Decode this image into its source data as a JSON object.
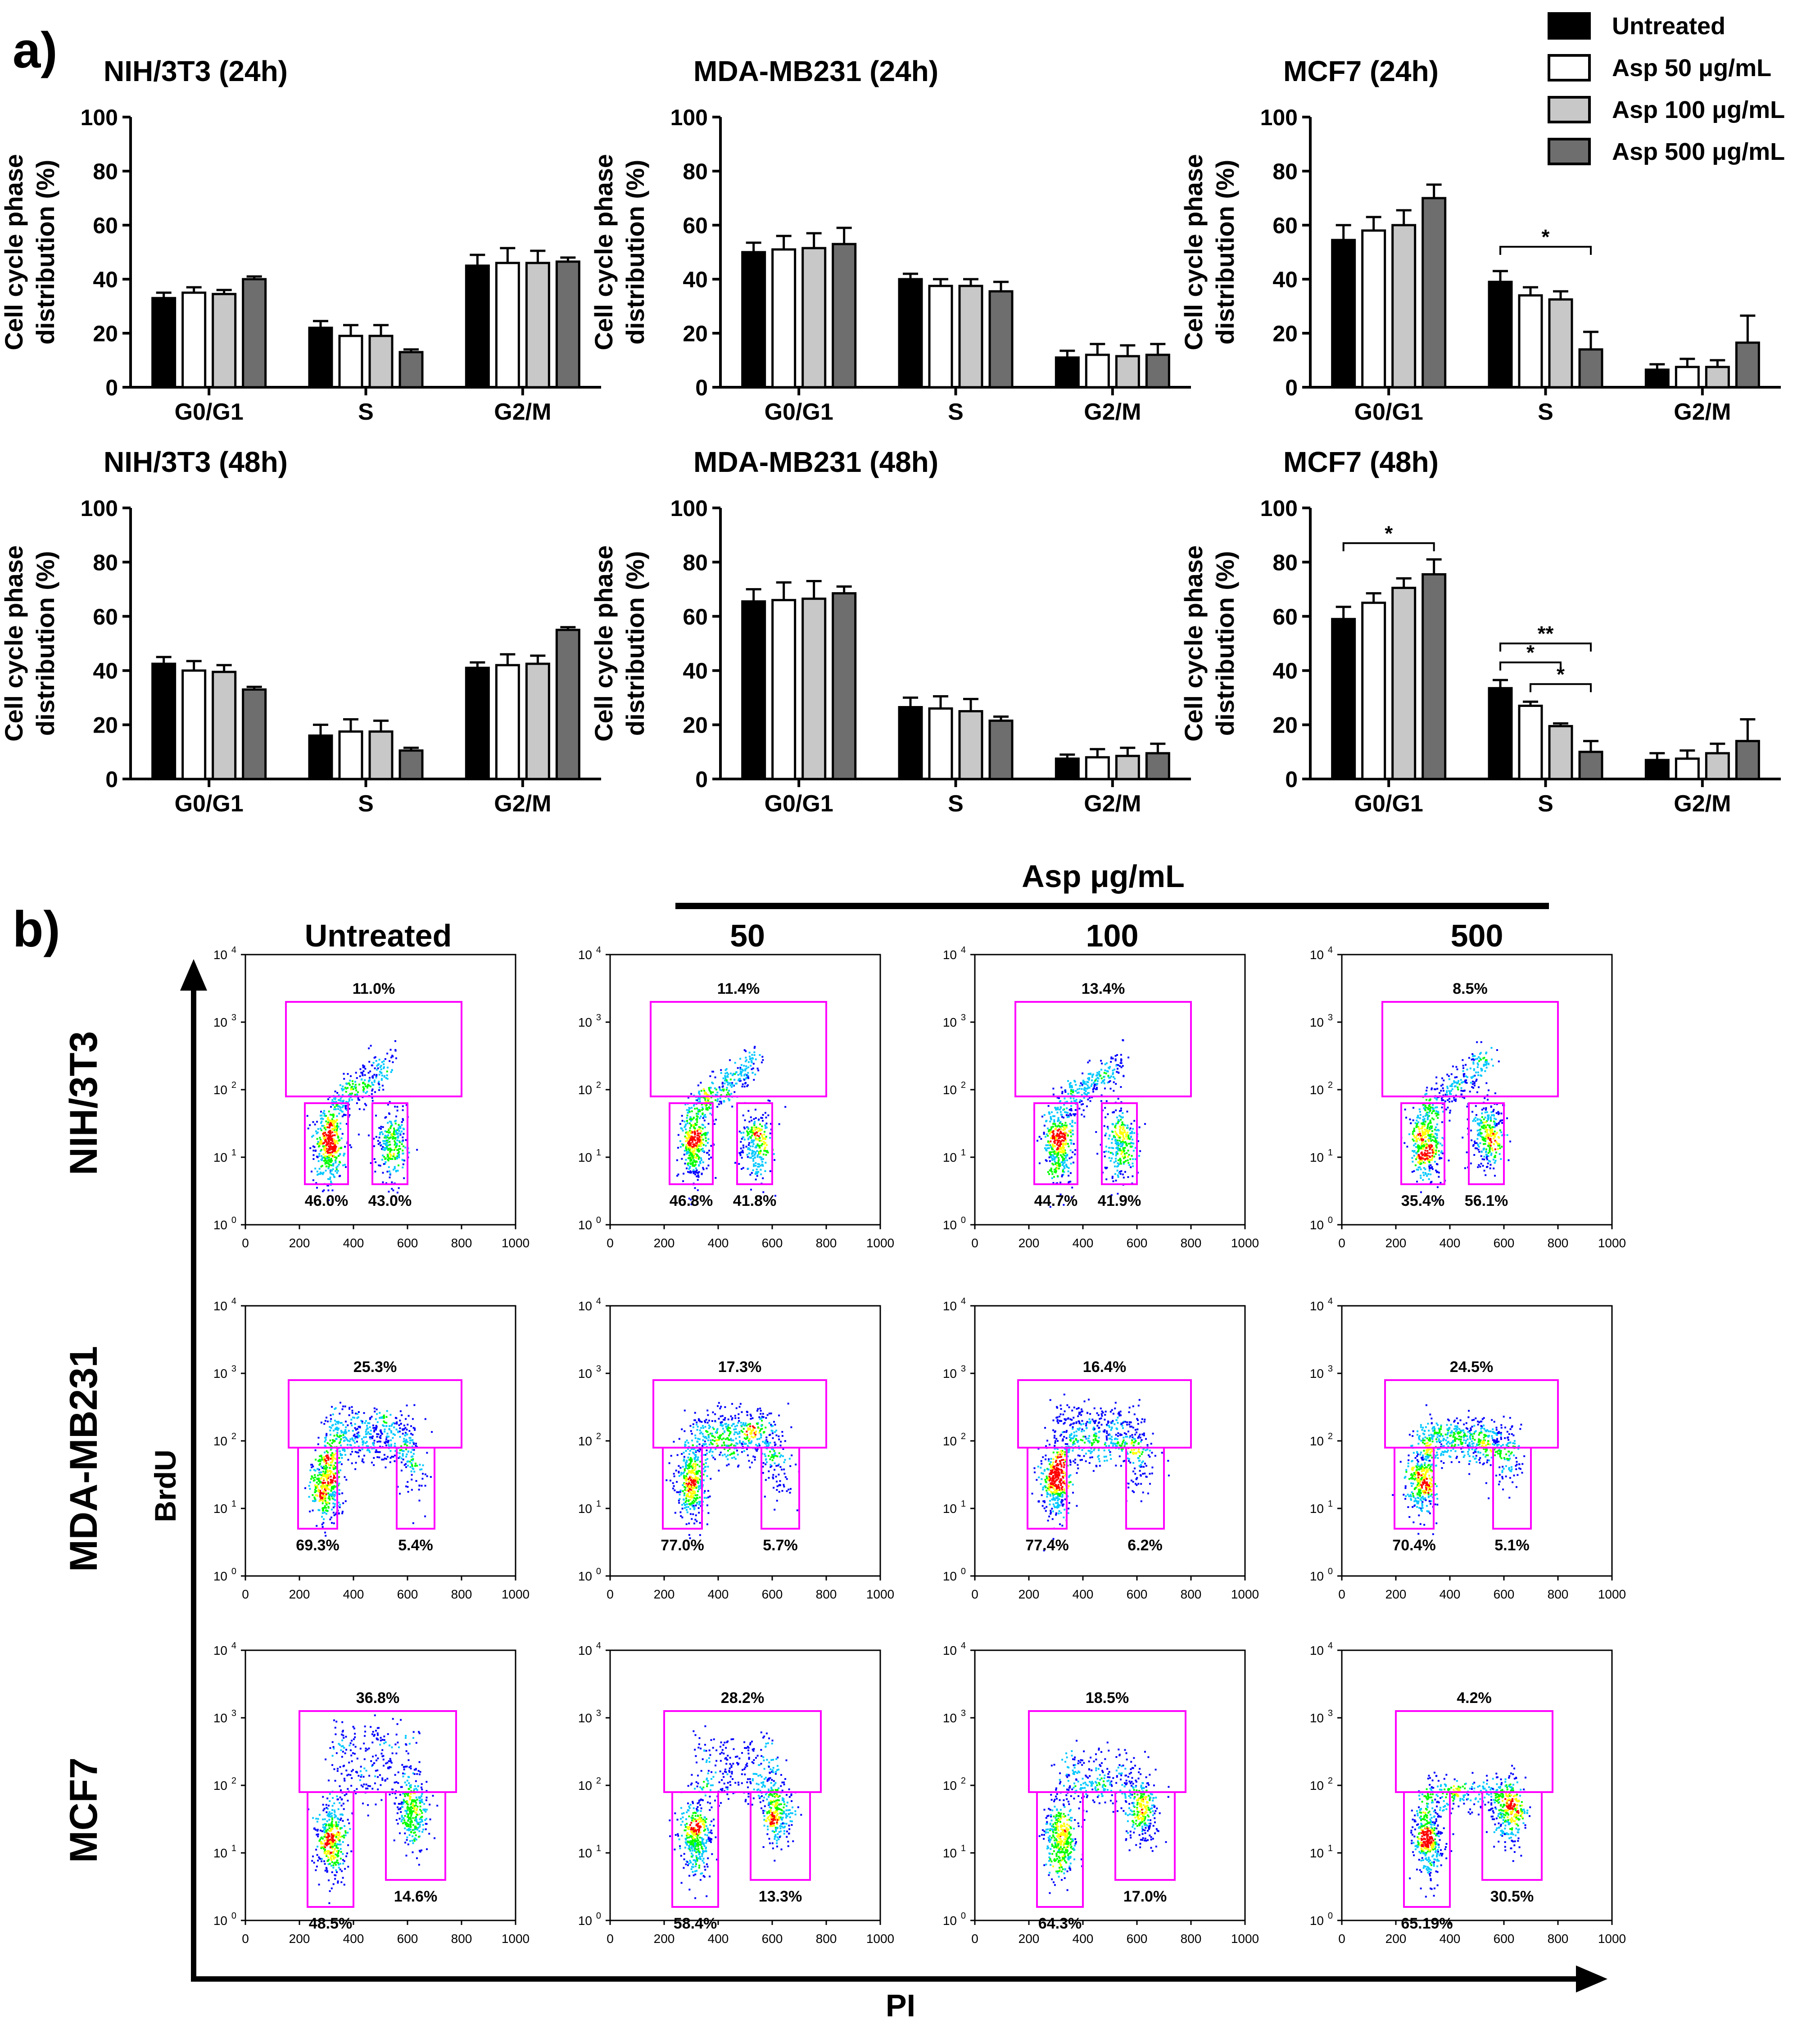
{
  "panel_a": {
    "label": "a)",
    "y_axis_label_line1": "Cell cycle phase",
    "y_axis_label_line2": "distribution (%)",
    "legend": [
      {
        "label": "Untreated",
        "color": "#000000"
      },
      {
        "label": "Asp 50 μg/mL",
        "color": "#ffffff"
      },
      {
        "label": "Asp 100 μg/mL",
        "color": "#c8c8c8"
      },
      {
        "label": "Asp 500 μg/mL",
        "color": "#6e6e6e"
      }
    ]
  },
  "chart_data": [
    {
      "type": "bar",
      "title": "NIH/3T3 (24h)",
      "ylim": [
        0,
        100
      ],
      "yticks": [
        "0",
        "20",
        "40",
        "60",
        "80",
        "100"
      ],
      "categories": [
        "G0/G1",
        "S",
        "G2/M"
      ],
      "series": [
        {
          "name": "Untreated",
          "values": [
            33,
            22,
            45
          ],
          "errors": [
            2,
            2.5,
            4
          ]
        },
        {
          "name": "Asp 50 μg/mL",
          "values": [
            35,
            19,
            46
          ],
          "errors": [
            2,
            4,
            5.5
          ]
        },
        {
          "name": "Asp 100 μg/mL",
          "values": [
            34.5,
            19,
            46
          ],
          "errors": [
            1.5,
            4,
            4.5
          ]
        },
        {
          "name": "Asp 500 μg/mL",
          "values": [
            40,
            13,
            46.5
          ],
          "errors": [
            1,
            1,
            1.5
          ]
        }
      ],
      "annotations": []
    },
    {
      "type": "bar",
      "title": "MDA-MB231 (24h)",
      "ylim": [
        0,
        100
      ],
      "yticks": [
        "0",
        "20",
        "40",
        "60",
        "80",
        "100"
      ],
      "categories": [
        "G0/G1",
        "S",
        "G2/M"
      ],
      "series": [
        {
          "name": "Untreated",
          "values": [
            50,
            40,
            11
          ],
          "errors": [
            3.5,
            2,
            2.5
          ]
        },
        {
          "name": "Asp 50 μg/mL",
          "values": [
            51,
            37.5,
            12
          ],
          "errors": [
            5,
            2.5,
            4
          ]
        },
        {
          "name": "Asp 100 μg/mL",
          "values": [
            51.5,
            37.5,
            11.5
          ],
          "errors": [
            5.5,
            2.5,
            4
          ]
        },
        {
          "name": "Asp 500 μg/mL",
          "values": [
            53,
            35.5,
            12
          ],
          "errors": [
            6,
            3.5,
            4
          ]
        }
      ],
      "annotations": []
    },
    {
      "type": "bar",
      "title": "MCF7 (24h)",
      "ylim": [
        0,
        100
      ],
      "yticks": [
        "0",
        "20",
        "40",
        "60",
        "80",
        "100"
      ],
      "categories": [
        "G0/G1",
        "S",
        "G2/M"
      ],
      "series": [
        {
          "name": "Untreated",
          "values": [
            54.5,
            39,
            6.5
          ],
          "errors": [
            5.5,
            4,
            2
          ]
        },
        {
          "name": "Asp 50 μg/mL",
          "values": [
            58,
            34,
            7.5
          ],
          "errors": [
            5,
            3,
            3
          ]
        },
        {
          "name": "Asp 100 μg/mL",
          "values": [
            60,
            32.5,
            7.5
          ],
          "errors": [
            5.5,
            3,
            2.5
          ]
        },
        {
          "name": "Asp 500 μg/mL",
          "values": [
            70,
            14,
            16.5
          ],
          "errors": [
            5,
            6.5,
            10
          ]
        }
      ],
      "annotations": [
        {
          "text": "*",
          "from_category": 1,
          "from_series": 0,
          "to_series": 3,
          "level": 52
        }
      ]
    },
    {
      "type": "bar",
      "title": "NIH/3T3 (48h)",
      "ylim": [
        0,
        100
      ],
      "yticks": [
        "0",
        "20",
        "40",
        "60",
        "80",
        "100"
      ],
      "categories": [
        "G0/G1",
        "S",
        "G2/M"
      ],
      "series": [
        {
          "name": "Untreated",
          "values": [
            42.5,
            16,
            41
          ],
          "errors": [
            2.5,
            4,
            2
          ]
        },
        {
          "name": "Asp 50 μg/mL",
          "values": [
            40,
            17.5,
            42
          ],
          "errors": [
            3.5,
            4.5,
            4
          ]
        },
        {
          "name": "Asp 100 μg/mL",
          "values": [
            39.5,
            17.5,
            42.5
          ],
          "errors": [
            2.5,
            4,
            3
          ]
        },
        {
          "name": "Asp 500 μg/mL",
          "values": [
            33,
            10.5,
            55
          ],
          "errors": [
            1,
            1,
            1
          ]
        }
      ],
      "annotations": []
    },
    {
      "type": "bar",
      "title": "MDA-MB231 (48h)",
      "ylim": [
        0,
        100
      ],
      "yticks": [
        "0",
        "20",
        "40",
        "60",
        "80",
        "100"
      ],
      "categories": [
        "G0/G1",
        "S",
        "G2/M"
      ],
      "series": [
        {
          "name": "Untreated",
          "values": [
            65.5,
            26.5,
            7.5
          ],
          "errors": [
            4.5,
            3.5,
            1.5
          ]
        },
        {
          "name": "Asp 50 μg/mL",
          "values": [
            66,
            26,
            8
          ],
          "errors": [
            6.5,
            4.5,
            3
          ]
        },
        {
          "name": "Asp 100 μg/mL",
          "values": [
            66.5,
            25,
            8.5
          ],
          "errors": [
            6.5,
            4.5,
            3
          ]
        },
        {
          "name": "Asp 500 μg/mL",
          "values": [
            68.5,
            21.5,
            9.5
          ],
          "errors": [
            2.5,
            1.5,
            3.5
          ]
        }
      ],
      "annotations": []
    },
    {
      "type": "bar",
      "title": "MCF7 (48h)",
      "ylim": [
        0,
        100
      ],
      "yticks": [
        "0",
        "20",
        "40",
        "60",
        "80",
        "100"
      ],
      "categories": [
        "G0/G1",
        "S",
        "G2/M"
      ],
      "series": [
        {
          "name": "Untreated",
          "values": [
            59,
            33.5,
            7
          ],
          "errors": [
            4.5,
            3,
            2.5
          ]
        },
        {
          "name": "Asp 50 μg/mL",
          "values": [
            65,
            27,
            7.5
          ],
          "errors": [
            3.5,
            1.5,
            3
          ]
        },
        {
          "name": "Asp 100 μg/mL",
          "values": [
            70.5,
            19.5,
            9.5
          ],
          "errors": [
            3.5,
            1,
            3.5
          ]
        },
        {
          "name": "Asp 500 μg/mL",
          "values": [
            75.5,
            10,
            14
          ],
          "errors": [
            5.5,
            4,
            8
          ]
        }
      ],
      "annotations": [
        {
          "text": "*",
          "from_category": 0,
          "from_series": 0,
          "to_series": 3,
          "level": 87
        },
        {
          "text": "**",
          "from_category": 1,
          "from_series": 0,
          "to_series": 3,
          "level": 50
        },
        {
          "text": "*",
          "from_category": 1,
          "from_series": 0,
          "to_series": 2,
          "level": 43
        },
        {
          "text": "*",
          "from_category": 1,
          "from_series": 1,
          "to_series": 3,
          "level": 35
        }
      ]
    }
  ],
  "panel_b": {
    "label": "b)",
    "dose_header": "Asp μg/mL",
    "column_titles": [
      "Untreated",
      "50",
      "100",
      "500"
    ],
    "row_titles": [
      "NIH/3T3",
      "MDA-MB231",
      "MCF7"
    ],
    "y_axis_title": "BrdU",
    "x_axis_title": "PI",
    "x_ticks": [
      "0",
      "200",
      "400",
      "600",
      "800",
      "1000"
    ],
    "y_ticks": [
      "10",
      "10",
      "10",
      "10",
      "10"
    ],
    "y_tick_exponents": [
      "0",
      "1",
      "2",
      "3",
      "4"
    ],
    "percentages": [
      [
        [
          "11.0%",
          "46.0%",
          "43.0%"
        ],
        [
          "11.4%",
          "46.8%",
          "41.8%"
        ],
        [
          "13.4%",
          "44.7%",
          "41.9%"
        ],
        [
          "8.5%",
          "35.4%",
          "56.1%"
        ]
      ],
      [
        [
          "25.3%",
          "69.3%",
          "5.4%"
        ],
        [
          "17.3%",
          "77.0%",
          "5.7%"
        ],
        [
          "16.4%",
          "77.4%",
          "6.2%"
        ],
        [
          "24.5%",
          "70.4%",
          "5.1%"
        ]
      ],
      [
        [
          "36.8%",
          "48.5%",
          "14.6%"
        ],
        [
          "28.2%",
          "58.4%",
          "13.3%"
        ],
        [
          "18.5%",
          "64.3%",
          "17.0%"
        ],
        [
          "4.2%",
          "65.19%",
          "30.5%"
        ]
      ]
    ],
    "gate_color": "#ff00ff",
    "density_colors": [
      "#0000ff",
      "#00c8ff",
      "#00ff00",
      "#ffff00",
      "#ff0000"
    ]
  }
}
